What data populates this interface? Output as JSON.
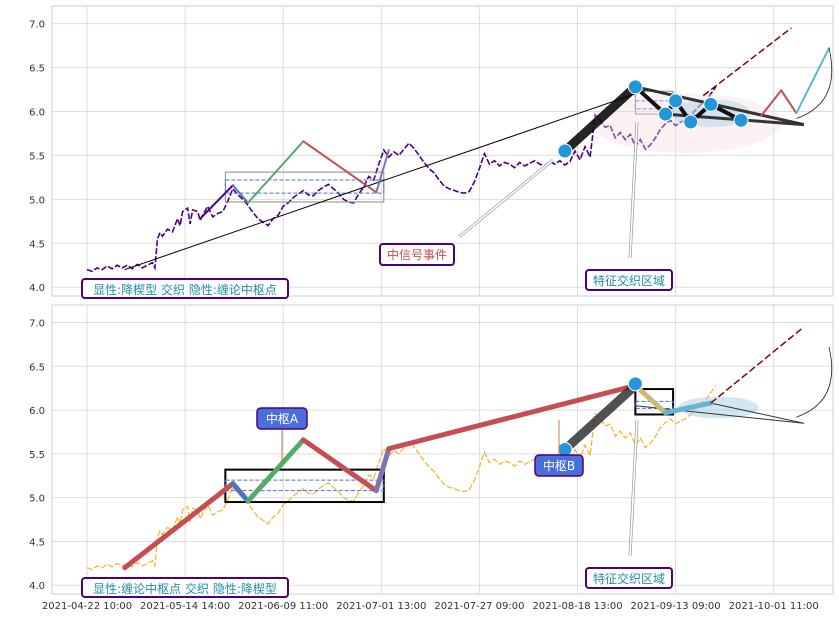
{
  "chart_data": [
    {
      "type": "line",
      "title": "",
      "ylim": [
        3.9,
        7.2
      ],
      "y_ticks": [
        "4.0",
        "4.5",
        "5.0",
        "5.5",
        "6.0",
        "6.5",
        "7.0"
      ],
      "grid": true,
      "price_color": "#4b0082",
      "price_series": [
        [
          0,
          4.2
        ],
        [
          2,
          4.18
        ],
        [
          4,
          4.22
        ],
        [
          6,
          4.2
        ],
        [
          8,
          4.24
        ],
        [
          10,
          4.21
        ],
        [
          12,
          4.25
        ],
        [
          14,
          4.22
        ],
        [
          16,
          4.25
        ],
        [
          18,
          4.21
        ],
        [
          20,
          4.26
        ],
        [
          22,
          4.22
        ],
        [
          24,
          4.25
        ],
        [
          26,
          4.28
        ],
        [
          27,
          4.22
        ],
        [
          28,
          4.55
        ],
        [
          29,
          4.62
        ],
        [
          30,
          4.58
        ],
        [
          32,
          4.66
        ],
        [
          34,
          4.63
        ],
        [
          36,
          4.78
        ],
        [
          37,
          4.7
        ],
        [
          38,
          4.86
        ],
        [
          40,
          4.9
        ],
        [
          41,
          4.72
        ],
        [
          42,
          4.88
        ],
        [
          44,
          4.86
        ],
        [
          45,
          4.76
        ],
        [
          46,
          4.82
        ],
        [
          48,
          4.92
        ],
        [
          50,
          4.8
        ],
        [
          52,
          4.84
        ],
        [
          54,
          4.86
        ],
        [
          56,
          4.98
        ],
        [
          58,
          5.12
        ],
        [
          60,
          5.05
        ],
        [
          62,
          5.0
        ],
        [
          64,
          4.93
        ],
        [
          66,
          4.85
        ],
        [
          68,
          4.78
        ],
        [
          70,
          4.74
        ],
        [
          72,
          4.7
        ],
        [
          74,
          4.78
        ],
        [
          76,
          4.82
        ],
        [
          78,
          4.92
        ],
        [
          80,
          4.96
        ],
        [
          82,
          5.02
        ],
        [
          84,
          5.06
        ],
        [
          86,
          5.1
        ],
        [
          88,
          5.05
        ],
        [
          90,
          5.04
        ],
        [
          92,
          5.1
        ],
        [
          94,
          5.14
        ],
        [
          96,
          5.17
        ],
        [
          98,
          5.12
        ],
        [
          100,
          5.07
        ],
        [
          102,
          5.0
        ],
        [
          104,
          4.97
        ],
        [
          106,
          4.96
        ],
        [
          108,
          5.06
        ],
        [
          110,
          5.14
        ],
        [
          112,
          5.26
        ],
        [
          114,
          5.22
        ],
        [
          116,
          5.4
        ],
        [
          118,
          5.56
        ],
        [
          120,
          5.48
        ],
        [
          122,
          5.54
        ],
        [
          124,
          5.5
        ],
        [
          126,
          5.57
        ],
        [
          128,
          5.64
        ],
        [
          130,
          5.58
        ],
        [
          132,
          5.5
        ],
        [
          134,
          5.42
        ],
        [
          136,
          5.35
        ],
        [
          138,
          5.3
        ],
        [
          140,
          5.22
        ],
        [
          142,
          5.15
        ],
        [
          144,
          5.12
        ],
        [
          146,
          5.1
        ],
        [
          148,
          5.08
        ],
        [
          150,
          5.07
        ],
        [
          152,
          5.09
        ],
        [
          154,
          5.2
        ],
        [
          156,
          5.35
        ],
        [
          158,
          5.52
        ],
        [
          160,
          5.4
        ],
        [
          162,
          5.44
        ],
        [
          164,
          5.38
        ],
        [
          166,
          5.42
        ],
        [
          168,
          5.4
        ],
        [
          170,
          5.36
        ],
        [
          172,
          5.42
        ],
        [
          174,
          5.38
        ],
        [
          176,
          5.41
        ],
        [
          178,
          5.44
        ],
        [
          180,
          5.4
        ],
        [
          182,
          5.38
        ],
        [
          184,
          5.43
        ],
        [
          186,
          5.4
        ],
        [
          188,
          5.44
        ],
        [
          190,
          5.39
        ],
        [
          192,
          5.43
        ],
        [
          194,
          5.55
        ],
        [
          196,
          5.45
        ],
        [
          198,
          5.6
        ],
        [
          200,
          5.48
        ],
        [
          202,
          5.96
        ],
        [
          204,
          5.9
        ],
        [
          206,
          5.82
        ],
        [
          208,
          5.84
        ],
        [
          210,
          5.7
        ],
        [
          212,
          5.76
        ],
        [
          214,
          5.68
        ],
        [
          216,
          5.74
        ],
        [
          218,
          5.6
        ],
        [
          220,
          5.68
        ],
        [
          222,
          5.57
        ],
        [
          224,
          5.62
        ],
        [
          226,
          5.7
        ],
        [
          228,
          5.8
        ],
        [
          230,
          5.86
        ],
        [
          232,
          5.9
        ],
        [
          234,
          5.84
        ],
        [
          236,
          5.88
        ],
        [
          238,
          5.9
        ],
        [
          240,
          5.95
        ],
        [
          242,
          6.02
        ],
        [
          244,
          6.08
        ],
        [
          246,
          6.12
        ],
        [
          248,
          6.2
        ],
        [
          250,
          6.28
        ]
      ],
      "bi_strokes": [
        {
          "x": [
            45,
            58
          ],
          "y": [
            4.78,
            5.16
          ],
          "color": "#4b0082"
        },
        {
          "x": [
            58,
            64
          ],
          "y": [
            5.16,
            4.96
          ],
          "color": "#5470c6"
        },
        {
          "x": [
            64,
            86
          ],
          "y": [
            4.96,
            5.66
          ],
          "color": "#55aa6b"
        },
        {
          "x": [
            86,
            115
          ],
          "y": [
            5.66,
            5.08
          ],
          "color": "#c44e52"
        },
        {
          "x": [
            115,
            120
          ],
          "y": [
            5.08,
            5.56
          ],
          "color": "#8172b2"
        },
        {
          "x": [
            190,
            218
          ],
          "y": [
            5.55,
            6.28
          ],
          "color": "#000000"
        },
        {
          "x": [
            268,
            276
          ],
          "y": [
            5.95,
            6.24
          ],
          "color": "#c44e52"
        },
        {
          "x": [
            276,
            282
          ],
          "y": [
            6.24,
            5.98
          ],
          "color": "#c44e52"
        },
        {
          "x": [
            282,
            295
          ],
          "y": [
            5.98,
            6.72
          ],
          "color": "#64b5cd"
        }
      ],
      "trend_line": {
        "x": [
          15,
          223
        ],
        "y": [
          4.2,
          6.25
        ],
        "color": "#000000"
      },
      "projection": {
        "x": [
          245,
          280
        ],
        "y": [
          6.18,
          6.95
        ],
        "color": "#8b0000"
      },
      "zhongshu": [
        {
          "x": [
            55,
            118
          ],
          "y": [
            4.97,
            5.31
          ],
          "inner_y": [
            5.07,
            5.22
          ],
          "color": "#888888"
        },
        {
          "x": [
            218,
            233
          ],
          "y": [
            5.97,
            6.23
          ],
          "inner_y": [
            6.03,
            6.12
          ],
          "color": "#888888"
        }
      ],
      "feature_swings": [
        [
          218,
          6.28
        ],
        [
          230,
          5.97
        ],
        [
          234,
          6.12
        ],
        [
          240,
          5.88
        ],
        [
          248,
          6.08
        ],
        [
          260,
          5.9
        ]
      ],
      "feature_points": [
        [
          190,
          5.55
        ],
        [
          218,
          6.28
        ],
        [
          230,
          5.97
        ],
        [
          234,
          6.12
        ],
        [
          240,
          5.88
        ],
        [
          248,
          6.08
        ],
        [
          260,
          5.9
        ]
      ],
      "wedge_lines": [
        {
          "x": [
            218,
            285
          ],
          "y": [
            6.28,
            5.85
          ]
        },
        {
          "x": [
            230,
            285
          ],
          "y": [
            5.97,
            5.85
          ]
        }
      ],
      "annotations": [
        {
          "text": "显性:降楔型 交织 隐性:缠论中枢点",
          "style": "teal"
        },
        {
          "text": "中信号事件",
          "style": "red"
        },
        {
          "text": "特征交织区域",
          "style": "teal"
        }
      ]
    },
    {
      "type": "line",
      "title": "",
      "ylim": [
        3.9,
        7.2
      ],
      "y_ticks": [
        "4.0",
        "4.5",
        "5.0",
        "5.5",
        "6.0",
        "6.5",
        "7.0"
      ],
      "x_tick_labels": [
        "2021-04-22 10:00",
        "2021-05-14 14:00",
        "2021-06-09 11:00",
        "2021-07-01 13:00",
        "2021-07-27 09:00",
        "2021-08-18 13:00",
        "2021-09-13 09:00",
        "2021-10-01 11:00"
      ],
      "grid": true,
      "price_color": "#f0b429",
      "bi_strokes": [
        {
          "x": [
            15,
            58
          ],
          "y": [
            4.2,
            5.16
          ],
          "color": "#c44e52"
        },
        {
          "x": [
            58,
            64
          ],
          "y": [
            5.16,
            4.96
          ],
          "color": "#5470c6"
        },
        {
          "x": [
            64,
            86
          ],
          "y": [
            4.96,
            5.66
          ],
          "color": "#55aa6b"
        },
        {
          "x": [
            86,
            115
          ],
          "y": [
            5.66,
            5.08
          ],
          "color": "#c44e52"
        },
        {
          "x": [
            115,
            120
          ],
          "y": [
            5.08,
            5.56
          ],
          "color": "#8172b2"
        },
        {
          "x": [
            120,
            218
          ],
          "y": [
            5.56,
            6.28
          ],
          "color": "#c44e52"
        },
        {
          "x": [
            190,
            218
          ],
          "y": [
            5.55,
            6.28
          ],
          "color": "#333333"
        },
        {
          "x": [
            218,
            230
          ],
          "y": [
            6.28,
            5.97
          ],
          "color": "#ccb974"
        },
        {
          "x": [
            230,
            248
          ],
          "y": [
            5.97,
            6.08
          ],
          "color": "#64b5cd"
        }
      ],
      "projection": {
        "x": [
          248,
          285
        ],
        "y": [
          6.08,
          6.95
        ],
        "color": "#8b0000"
      },
      "zhongshu": [
        {
          "x": [
            55,
            118
          ],
          "y": [
            4.95,
            5.32
          ],
          "inner_y": [
            5.08,
            5.2
          ],
          "color": "#000000"
        },
        {
          "x": [
            218,
            233
          ],
          "y": [
            5.95,
            6.24
          ],
          "inner_y": [
            6.02,
            6.1
          ],
          "color": "#000000"
        }
      ],
      "feature_points": [
        [
          190,
          5.55
        ],
        [
          218,
          6.3
        ]
      ],
      "annotations": [
        {
          "text": "中枢A",
          "style": "blue"
        },
        {
          "text": "中枢B",
          "style": "blue"
        },
        {
          "text": "显性:缠论中枢点 交织 隐性:降楔型",
          "style": "teal"
        },
        {
          "text": "特征交织区域",
          "style": "teal"
        }
      ]
    }
  ]
}
